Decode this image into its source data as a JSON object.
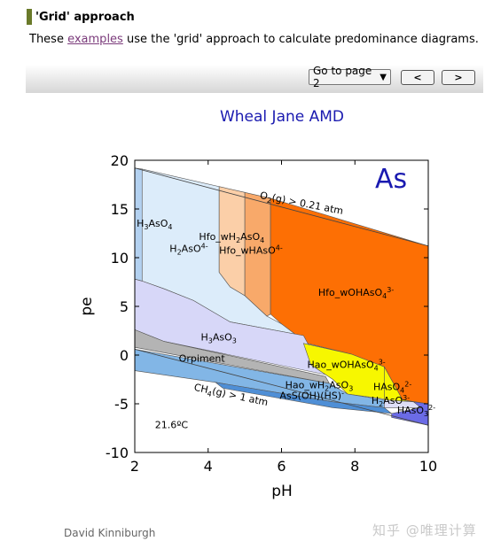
{
  "section": {
    "title": "'Grid' approach"
  },
  "intro": {
    "before": "These ",
    "link": "examples",
    "after": " use the 'grid' approach to calculate predominance diagrams."
  },
  "pager": {
    "selected": "Go to page 2"
  },
  "nav": {
    "prev_icon": "chevron-left-icon",
    "next_icon": "chevron-right-icon"
  },
  "chart_data": {
    "type": "area",
    "title": "Wheal Jane AMD",
    "xlabel": "pH",
    "ylabel": "pe",
    "xlim": [
      2,
      10
    ],
    "ylim": [
      -10,
      20
    ],
    "xticks": [
      "2",
      "4",
      "6",
      "8",
      "10"
    ],
    "yticks": [
      "-10",
      "-5",
      "0",
      "5",
      "10",
      "15",
      "20"
    ],
    "element_label": "As",
    "temperature_label": "21.6ºC",
    "boundary_labels": [
      {
        "main": "O",
        "sub": "2",
        "rest": "(g) > 0.21 atm",
        "x": 5.4,
        "y": 16.1
      },
      {
        "main": "CH",
        "sub": "4",
        "rest": "(g) > 1 atm",
        "x": 3.6,
        "y": -3.6
      }
    ],
    "regions": [
      {
        "name": "H3AsO4",
        "label": "H3AsO4",
        "color": "#b3d1f0",
        "polygon": [
          [
            2,
            19.2
          ],
          [
            2.2,
            19.1
          ],
          [
            2.2,
            7.6
          ],
          [
            2,
            7.8
          ]
        ],
        "label_pos": [
          2.05,
          13.2
        ]
      },
      {
        "name": "H2AsO4-",
        "label": "H2AsO4-",
        "color": "#dcecfa",
        "polygon": [
          [
            2.2,
            19.1
          ],
          [
            4.3,
            17.3
          ],
          [
            4.3,
            8.5
          ],
          [
            4.6,
            7.0
          ],
          [
            5.0,
            6.1
          ],
          [
            5.6,
            4.0
          ],
          [
            6.4,
            2.4
          ],
          [
            6.6,
            2.0
          ],
          [
            4.6,
            3.4
          ],
          [
            3.6,
            5.6
          ],
          [
            2.8,
            6.8
          ],
          [
            2.2,
            7.6
          ]
        ],
        "label_pos": [
          2.95,
          10.6
        ]
      },
      {
        "name": "Hfo_wH2AsO4",
        "label": "Hfo_wH2AsO4",
        "color": "#fbcfa8",
        "polygon": [
          [
            4.3,
            17.3
          ],
          [
            5.0,
            16.7
          ],
          [
            5.0,
            6.1
          ],
          [
            4.6,
            7.0
          ],
          [
            4.3,
            8.5
          ]
        ],
        "label_pos": [
          3.75,
          11.8
        ]
      },
      {
        "name": "Hfo_wHAsO4-",
        "label": "Hfo_wHAsO4-",
        "color": "#f8a96a",
        "polygon": [
          [
            5.0,
            16.7
          ],
          [
            5.7,
            16.1
          ],
          [
            5.7,
            4.2
          ],
          [
            5.6,
            4.0
          ],
          [
            5.0,
            6.1
          ]
        ],
        "label_pos": [
          4.3,
          10.4
        ]
      },
      {
        "name": "Hfo_wOHAsO4-3",
        "label": "Hfo_wOHAsO43-",
        "color": "#fd6f04",
        "polygon": [
          [
            5.7,
            16.1
          ],
          [
            10,
            11.2
          ],
          [
            10,
            -5.0
          ],
          [
            9.3,
            -4.6
          ],
          [
            8.8,
            -1.2
          ],
          [
            7.9,
            0.1
          ],
          [
            6.7,
            1.2
          ],
          [
            6.0,
            3.2
          ],
          [
            5.7,
            4.2
          ]
        ],
        "label_pos": [
          7.0,
          6.1
        ]
      },
      {
        "name": "H3AsO3",
        "label": "H3AsO3",
        "color": "#d7d7f8",
        "polygon": [
          [
            2,
            7.8
          ],
          [
            2.2,
            7.6
          ],
          [
            2.8,
            6.8
          ],
          [
            3.6,
            5.6
          ],
          [
            4.6,
            3.4
          ],
          [
            6.6,
            2.0
          ],
          [
            6.8,
            0.6
          ],
          [
            7.0,
            -0.8
          ],
          [
            7.2,
            -2.0
          ],
          [
            2.8,
            1.4
          ],
          [
            2,
            2.6
          ]
        ],
        "label_pos": [
          3.8,
          1.5
        ]
      },
      {
        "name": "Orpiment",
        "label": "Orpiment",
        "color": "#b4b4b4",
        "polygon": [
          [
            2,
            2.6
          ],
          [
            2.8,
            1.4
          ],
          [
            7.2,
            -2.2
          ],
          [
            7.3,
            -2.9
          ],
          [
            2,
            0.8
          ]
        ],
        "label_pos": [
          3.2,
          -0.7
        ]
      },
      {
        "name": "Hao_wOHAsO4-3",
        "label": "Hao_wOHAsO43-",
        "color": "#f7f700",
        "polygon": [
          [
            6.6,
            1.2
          ],
          [
            7.9,
            0.1
          ],
          [
            8.8,
            -1.2
          ],
          [
            8.8,
            -4.5
          ],
          [
            7.8,
            -4.0
          ],
          [
            7.4,
            -2.5
          ],
          [
            6.8,
            -1.0
          ]
        ],
        "label_pos": [
          6.7,
          -1.3
        ]
      },
      {
        "name": "HAsO4-2",
        "label": "HAsO42-",
        "color": "#f7f700",
        "polygon": [
          [
            8.8,
            -1.2
          ],
          [
            9.3,
            -4.6
          ],
          [
            9.6,
            -4.8
          ],
          [
            8.8,
            -5.0
          ]
        ],
        "label_pos": [
          8.5,
          -3.6
        ]
      },
      {
        "name": "Hao_wH2AsO3",
        "label": "Hao_wH2AsO3",
        "color": "#82b6e6",
        "polygon": [
          [
            2,
            0.6
          ],
          [
            7.3,
            -2.9
          ],
          [
            7.8,
            -4.0
          ],
          [
            8.8,
            -4.6
          ],
          [
            8.8,
            -5.4
          ],
          [
            7.4,
            -4.8
          ],
          [
            4.2,
            -2.8
          ],
          [
            2,
            -1.6
          ]
        ],
        "label_pos": [
          6.1,
          -3.4
        ]
      },
      {
        "name": "AsS(OH)(HS)-",
        "label": "AsS(OH)(HS)-",
        "color": "#4f8fd6",
        "polygon": [
          [
            4.2,
            -2.8
          ],
          [
            7.4,
            -4.8
          ],
          [
            8.8,
            -5.4
          ],
          [
            9.0,
            -6.0
          ],
          [
            7.4,
            -5.4
          ],
          [
            4.4,
            -3.4
          ]
        ],
        "label_pos": [
          5.95,
          -4.5
        ]
      },
      {
        "name": "H2AsO3-",
        "label": "H2AsO3-",
        "color": "#dedef7",
        "polygon": [
          [
            8.8,
            -4.6
          ],
          [
            9.6,
            -4.8
          ],
          [
            9.8,
            -5.4
          ],
          [
            8.8,
            -5.4
          ]
        ],
        "label_pos": [
          8.45,
          -5.0
        ]
      },
      {
        "name": "HAsO3-2",
        "label": "HAsO32-",
        "color": "#6b6be6",
        "polygon": [
          [
            9.6,
            -4.8
          ],
          [
            10,
            -5.0
          ],
          [
            10,
            -7.2
          ],
          [
            9.0,
            -6.4
          ],
          [
            9.0,
            -6.0
          ],
          [
            9.8,
            -5.4
          ]
        ],
        "label_pos": [
          9.15,
          -6.0
        ]
      }
    ]
  },
  "footer": {
    "author": "David Kinniburgh",
    "watermark": "知乎 @唯理计算"
  }
}
